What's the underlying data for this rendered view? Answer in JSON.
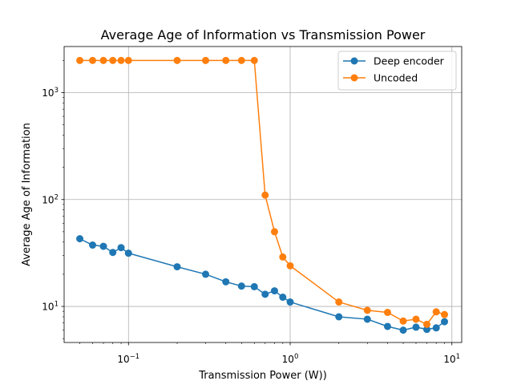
{
  "chart_data": {
    "type": "line",
    "title": "Average Age of Information vs Transmission Power",
    "xlabel": "Transmission Power (W))",
    "ylabel": "Average Age of Information",
    "xscale": "log",
    "yscale": "log",
    "xlim": [
      0.04,
      11.5
    ],
    "ylim": [
      4.6,
      2700
    ],
    "grid": true,
    "legend_position": "top-right",
    "x_major_ticks": [
      {
        "value": 0.1,
        "base": "10",
        "exp": "−1"
      },
      {
        "value": 1,
        "base": "10",
        "exp": "0"
      },
      {
        "value": 10,
        "base": "10",
        "exp": "1"
      }
    ],
    "y_major_ticks": [
      {
        "value": 10,
        "base": "10",
        "exp": "1"
      },
      {
        "value": 100,
        "base": "10",
        "exp": "2"
      },
      {
        "value": 1000,
        "base": "10",
        "exp": "3"
      }
    ],
    "x": [
      0.05,
      0.06,
      0.07,
      0.08,
      0.09,
      0.1,
      0.2,
      0.3,
      0.4,
      0.5,
      0.6,
      0.7,
      0.8,
      0.9,
      1,
      2,
      3,
      4,
      5,
      6,
      7,
      8,
      9
    ],
    "series": [
      {
        "name": "Deep encoder",
        "color": "#1f77b4",
        "values": [
          43,
          37.5,
          36.5,
          32,
          35.5,
          31.5,
          23.5,
          20,
          17,
          15.5,
          15.3,
          13,
          14,
          12.2,
          11,
          8,
          7.6,
          6.5,
          6,
          6.4,
          6.1,
          6.3,
          7.2
        ]
      },
      {
        "name": "Uncoded",
        "color": "#ff7f0e",
        "values": [
          2000,
          2000,
          2000,
          2000,
          2000,
          2000,
          2000,
          2000,
          2000,
          2000,
          2000,
          110,
          50,
          29,
          24,
          11,
          9.2,
          8.8,
          7.3,
          7.6,
          6.8,
          8.9,
          8.4
        ]
      }
    ]
  }
}
